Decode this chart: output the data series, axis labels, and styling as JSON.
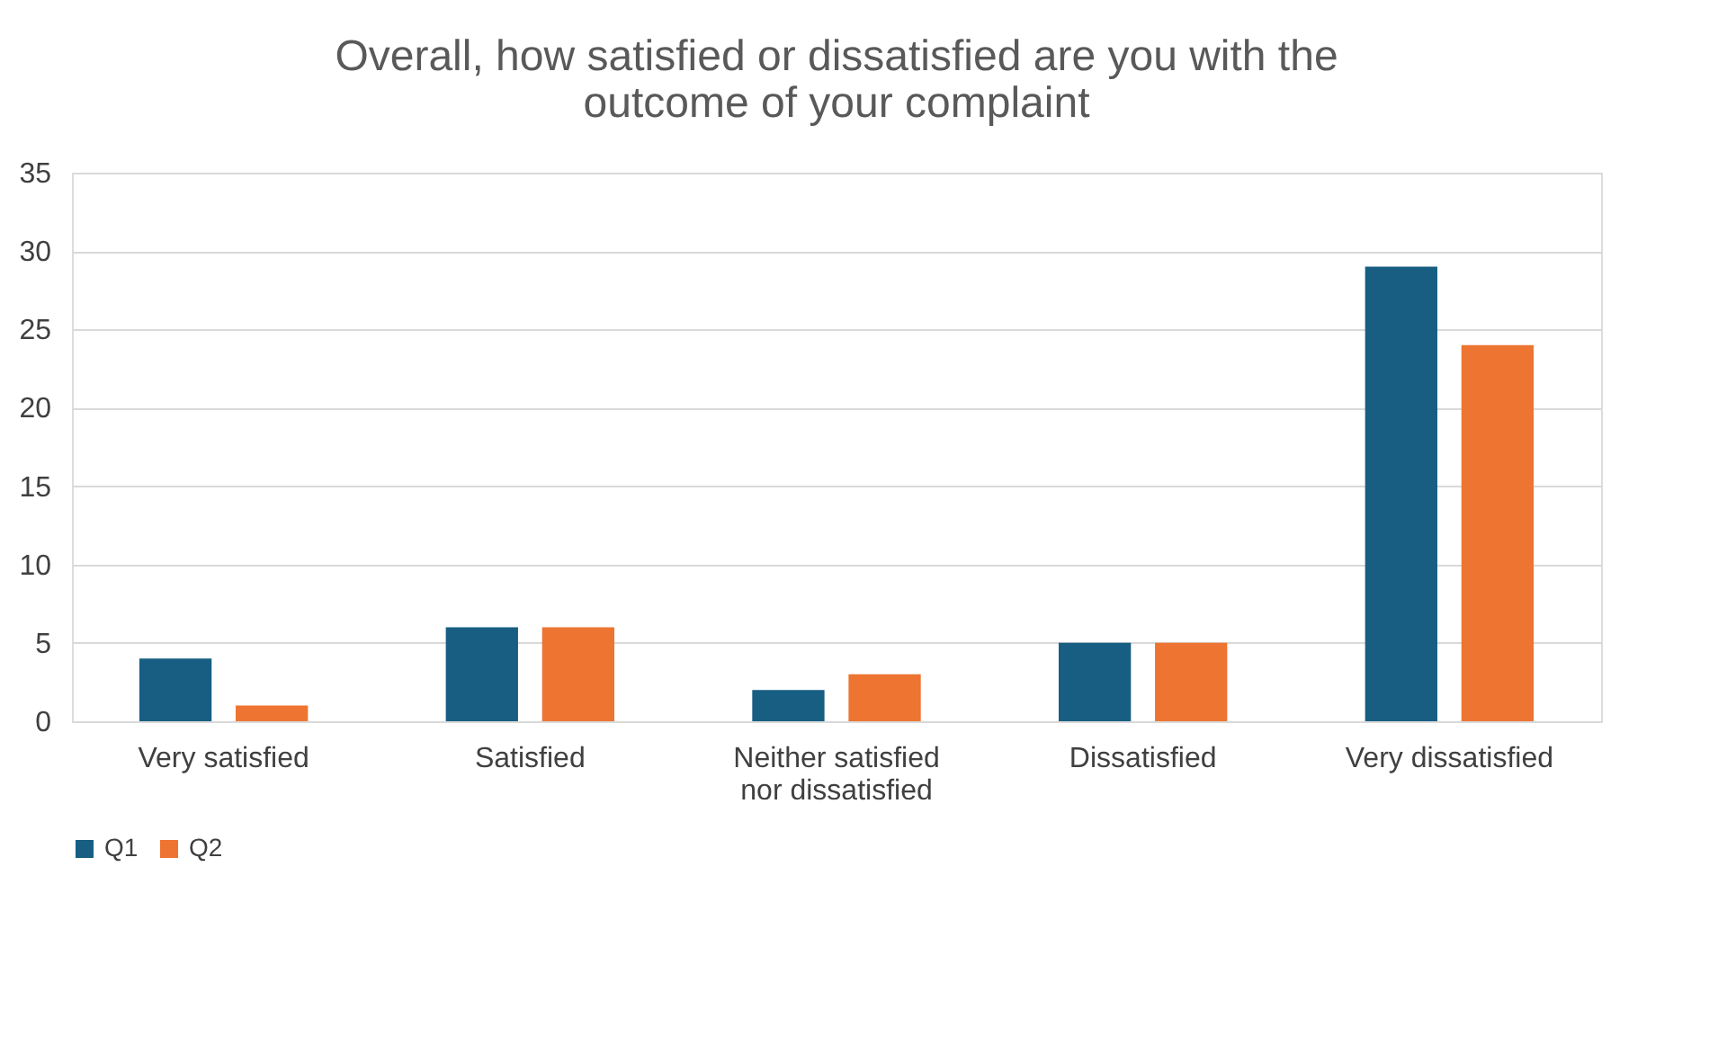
{
  "chart_data": {
    "type": "bar",
    "title": "Overall, how satisfied or dissatisfied are you with the outcome of your complaint",
    "categories": [
      "Very satisfied",
      "Satisfied",
      "Neither satisfied nor dissatisfied",
      "Dissatisfied",
      "Very dissatisfied"
    ],
    "series": [
      {
        "name": "Q1",
        "color": "#175e82",
        "values": [
          4,
          6,
          2,
          5,
          29
        ]
      },
      {
        "name": "Q2",
        "color": "#ed7431",
        "values": [
          1,
          6,
          3,
          5,
          24
        ]
      }
    ],
    "ylim": [
      0,
      35
    ],
    "yticks": [
      0,
      5,
      10,
      15,
      20,
      25,
      30,
      35
    ],
    "grid": "y",
    "legend": "bottom"
  }
}
